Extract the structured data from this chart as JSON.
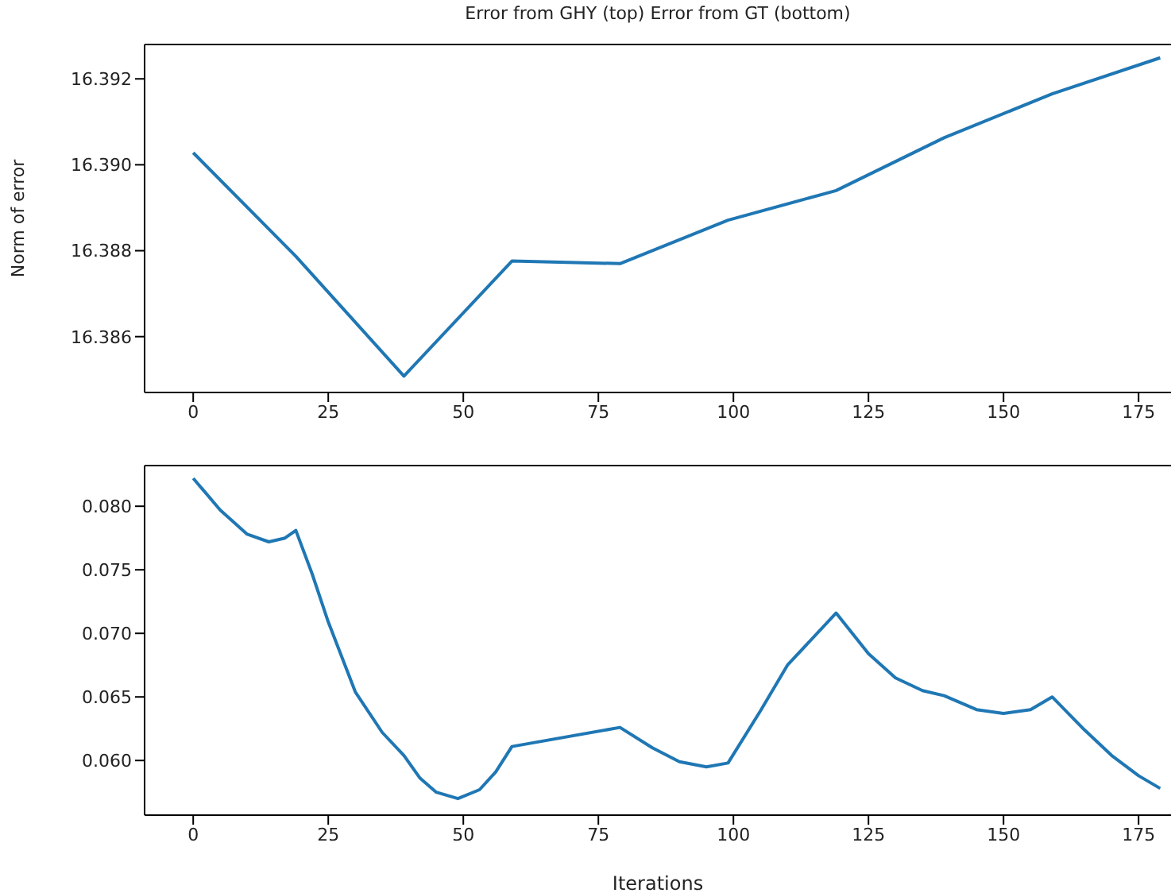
{
  "chart_data": [
    {
      "type": "line",
      "title": "Error from GHY (top) Error from GT (bottom)",
      "ylabel": "Norm of error",
      "xlim": [
        -9,
        181
      ],
      "xticks": [
        0,
        25,
        50,
        75,
        100,
        125,
        150,
        175
      ],
      "ylim": [
        16.3847,
        16.3928
      ],
      "yticks": [
        16.386,
        16.388,
        {
          "value": 16.39,
          "label": "16.390"
        },
        16.392
      ],
      "grid": false,
      "legend": false,
      "x": [
        0,
        19,
        39,
        59,
        79,
        99,
        119,
        139,
        159,
        179
      ],
      "series": [
        {
          "color": "#1f77b4",
          "values": [
            16.39028,
            16.38787,
            16.38508,
            16.38776,
            16.3877,
            16.38871,
            16.3894,
            16.39063,
            16.39165,
            16.39249
          ]
        }
      ]
    },
    {
      "type": "line",
      "xlabel": "Iterations",
      "xlim": [
        -9,
        181
      ],
      "xticks": [
        0,
        25,
        50,
        75,
        100,
        125,
        150,
        175
      ],
      "ylim": [
        0.0557,
        0.0832
      ],
      "yticks": [
        {
          "value": 0.06,
          "label": "0.060"
        },
        0.065,
        {
          "value": 0.07,
          "label": "0.070"
        },
        0.075,
        {
          "value": 0.08,
          "label": "0.080"
        }
      ],
      "grid": false,
      "legend": false,
      "x": [
        0,
        5,
        10,
        14,
        17,
        19,
        22,
        25,
        30,
        35,
        39,
        42,
        45,
        49,
        53,
        56,
        59,
        79,
        85,
        90,
        95,
        99,
        105,
        110,
        119,
        125,
        130,
        135,
        139,
        145,
        150,
        155,
        159,
        165,
        170,
        175,
        179
      ],
      "series": [
        {
          "color": "#1f77b4",
          "values": [
            0.0822,
            0.0797,
            0.0778,
            0.0772,
            0.0775,
            0.0781,
            0.0747,
            0.0709,
            0.0654,
            0.0622,
            0.0604,
            0.0586,
            0.0575,
            0.057,
            0.0577,
            0.0591,
            0.0611,
            0.0626,
            0.061,
            0.0599,
            0.0595,
            0.0598,
            0.0639,
            0.0675,
            0.0716,
            0.0684,
            0.0665,
            0.0655,
            0.0651,
            0.064,
            0.0637,
            0.064,
            0.065,
            0.0624,
            0.0604,
            0.0588,
            0.0578
          ]
        }
      ]
    }
  ]
}
